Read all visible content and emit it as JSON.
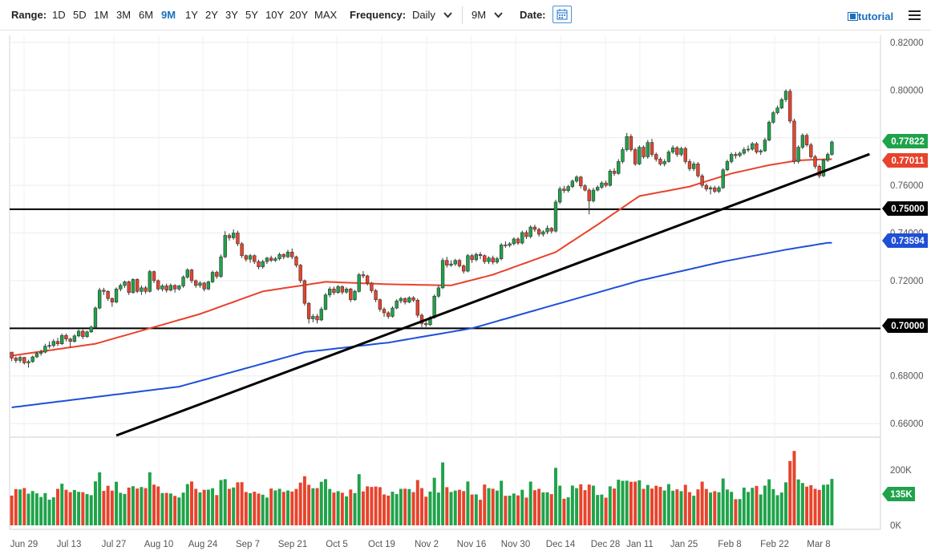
{
  "toolbar": {
    "range_label": "Range:",
    "ranges": [
      "1D",
      "5D",
      "1M",
      "3M",
      "6M",
      "9M",
      "1Y",
      "2Y",
      "3Y",
      "5Y",
      "10Y",
      "20Y",
      "MAX"
    ],
    "active_range": "9M",
    "frequency_label": "Frequency:",
    "frequency_value": "Daily",
    "period_value": "9M",
    "date_label": "Date:",
    "tutorial_label": "tutorial"
  },
  "chart_data": {
    "type": "candlestick",
    "price_axis": {
      "ylim": [
        0.655,
        0.823
      ],
      "ticks": [
        "0.82000",
        "0.80000",
        "0.78000",
        "0.76000",
        "0.74000",
        "0.72000",
        "0.70000",
        "0.68000",
        "0.66000"
      ]
    },
    "x_ticks": [
      "Jun 29",
      "Jul 13",
      "Jul 27",
      "Aug 10",
      "Aug 24",
      "Sep 7",
      "Sep 21",
      "Oct 5",
      "Oct 19",
      "Nov 2",
      "Nov 16",
      "Nov 30",
      "Dec 14",
      "Dec 28",
      "Jan 11",
      "Jan 25",
      "Feb 8",
      "Feb 22",
      "Mar 8"
    ],
    "price_markers": [
      {
        "label": "0.77822",
        "color": "#1fa34a"
      },
      {
        "label": "0.77011",
        "color": "#e8432c"
      },
      {
        "label": "0.75000",
        "color": "#000000"
      },
      {
        "label": "0.73594",
        "color": "#1e4fd8"
      },
      {
        "label": "0.70000",
        "color": "#000000"
      }
    ],
    "horizontal_lines": [
      0.75,
      0.7
    ],
    "moving_average_fast_anchors": [
      [
        0,
        0.6885
      ],
      [
        20,
        0.6935
      ],
      [
        45,
        0.706
      ],
      [
        60,
        0.7155
      ],
      [
        75,
        0.7195
      ],
      [
        90,
        0.7185
      ],
      [
        105,
        0.718
      ],
      [
        115,
        0.7225
      ],
      [
        130,
        0.732
      ],
      [
        140,
        0.7435
      ],
      [
        150,
        0.7555
      ],
      [
        162,
        0.7595
      ],
      [
        172,
        0.765
      ],
      [
        181,
        0.7685
      ],
      [
        188,
        0.7705
      ],
      [
        195,
        0.771
      ]
    ],
    "moving_average_slow_anchors": [
      [
        0,
        0.6668
      ],
      [
        40,
        0.6755
      ],
      [
        70,
        0.69
      ],
      [
        90,
        0.694
      ],
      [
        110,
        0.7
      ],
      [
        130,
        0.71
      ],
      [
        150,
        0.72
      ],
      [
        170,
        0.728
      ],
      [
        185,
        0.733
      ],
      [
        195,
        0.7359
      ]
    ],
    "trendline": {
      "from": [
        25,
        0.655
      ],
      "to": [
        205,
        0.7731
      ]
    },
    "volume_axis": {
      "ymax": 290,
      "ticks": [
        "200K",
        "0K"
      ],
      "last_label": "135K"
    },
    "candles_ohlc": [
      [
        0.69,
        0.6875,
        0.69,
        0.6862
      ],
      [
        0.6875,
        0.6865,
        0.6882,
        0.6855
      ],
      [
        0.6865,
        0.6878,
        0.6885,
        0.6855
      ],
      [
        0.6878,
        0.6855,
        0.688,
        0.6848
      ],
      [
        0.6855,
        0.686,
        0.6868,
        0.6835
      ],
      [
        0.686,
        0.688,
        0.6885,
        0.6855
      ],
      [
        0.688,
        0.6895,
        0.69,
        0.6875
      ],
      [
        0.6895,
        0.69,
        0.691,
        0.6885
      ],
      [
        0.69,
        0.6925,
        0.6935,
        0.6895
      ],
      [
        0.6925,
        0.6928,
        0.6945,
        0.6915
      ],
      [
        0.6928,
        0.6945,
        0.6955,
        0.692
      ],
      [
        0.6945,
        0.6935,
        0.696,
        0.6925
      ],
      [
        0.6935,
        0.697,
        0.6978,
        0.693
      ],
      [
        0.697,
        0.6955,
        0.6978,
        0.6945
      ],
      [
        0.6955,
        0.6945,
        0.696,
        0.692
      ],
      [
        0.6945,
        0.6968,
        0.6975,
        0.694
      ],
      [
        0.6968,
        0.6988,
        0.6995,
        0.6962
      ],
      [
        0.6988,
        0.6965,
        0.6995,
        0.6955
      ],
      [
        0.6965,
        0.6985,
        0.699,
        0.696
      ],
      [
        0.6985,
        0.7005,
        0.7012,
        0.698
      ],
      [
        0.7005,
        0.7085,
        0.7092,
        0.7
      ],
      [
        0.7085,
        0.716,
        0.717,
        0.708
      ],
      [
        0.716,
        0.7155,
        0.717,
        0.714
      ],
      [
        0.7155,
        0.7125,
        0.716,
        0.7115
      ],
      [
        0.7125,
        0.711,
        0.713,
        0.709
      ],
      [
        0.711,
        0.7165,
        0.7172,
        0.7105
      ],
      [
        0.7165,
        0.718,
        0.7188,
        0.7155
      ],
      [
        0.718,
        0.7195,
        0.72,
        0.717
      ],
      [
        0.7195,
        0.715,
        0.72,
        0.714
      ],
      [
        0.715,
        0.7205,
        0.721,
        0.7145
      ],
      [
        0.7205,
        0.7155,
        0.721,
        0.7148
      ],
      [
        0.7155,
        0.717,
        0.718,
        0.714
      ],
      [
        0.717,
        0.7155,
        0.7178,
        0.7145
      ],
      [
        0.7155,
        0.7238,
        0.7245,
        0.715
      ],
      [
        0.7238,
        0.72,
        0.7242,
        0.719
      ],
      [
        0.72,
        0.7165,
        0.7205,
        0.7158
      ],
      [
        0.7165,
        0.7178,
        0.7185,
        0.7155
      ],
      [
        0.7178,
        0.716,
        0.7188,
        0.715
      ],
      [
        0.716,
        0.718,
        0.7188,
        0.7155
      ],
      [
        0.718,
        0.7165,
        0.7185,
        0.715
      ],
      [
        0.7165,
        0.7178,
        0.7182,
        0.7158
      ],
      [
        0.7178,
        0.7215,
        0.7222,
        0.717
      ],
      [
        0.7215,
        0.7245,
        0.7252,
        0.7208
      ],
      [
        0.7245,
        0.72,
        0.725,
        0.719
      ],
      [
        0.72,
        0.718,
        0.7205,
        0.717
      ],
      [
        0.718,
        0.719,
        0.7198,
        0.717
      ],
      [
        0.719,
        0.7165,
        0.7195,
        0.7155
      ],
      [
        0.7165,
        0.7195,
        0.72,
        0.716
      ],
      [
        0.7195,
        0.7235,
        0.7242,
        0.719
      ],
      [
        0.7235,
        0.7218,
        0.7242,
        0.7208
      ],
      [
        0.7218,
        0.73,
        0.731,
        0.7212
      ],
      [
        0.73,
        0.739,
        0.7408,
        0.7295
      ],
      [
        0.739,
        0.738,
        0.7398,
        0.7368
      ],
      [
        0.738,
        0.74,
        0.7415,
        0.7372
      ],
      [
        0.74,
        0.7355,
        0.741,
        0.7345
      ],
      [
        0.7355,
        0.7305,
        0.7362,
        0.7295
      ],
      [
        0.7305,
        0.729,
        0.731,
        0.728
      ],
      [
        0.729,
        0.7305,
        0.7312,
        0.7275
      ],
      [
        0.7305,
        0.728,
        0.731,
        0.727
      ],
      [
        0.728,
        0.7258,
        0.7288,
        0.7248
      ],
      [
        0.7258,
        0.728,
        0.7288,
        0.725
      ],
      [
        0.728,
        0.7295,
        0.73,
        0.727
      ],
      [
        0.7295,
        0.7285,
        0.7305,
        0.7278
      ],
      [
        0.7285,
        0.7292,
        0.73,
        0.7278
      ],
      [
        0.7292,
        0.731,
        0.7318,
        0.7285
      ],
      [
        0.731,
        0.73,
        0.7315,
        0.729
      ],
      [
        0.73,
        0.732,
        0.733,
        0.7295
      ],
      [
        0.732,
        0.73,
        0.7335,
        0.729
      ],
      [
        0.73,
        0.7265,
        0.7305,
        0.7255
      ],
      [
        0.7265,
        0.72,
        0.727,
        0.719
      ],
      [
        0.72,
        0.7105,
        0.7205,
        0.7095
      ],
      [
        0.7105,
        0.704,
        0.711,
        0.702
      ],
      [
        0.704,
        0.705,
        0.706,
        0.7025
      ],
      [
        0.705,
        0.7035,
        0.706,
        0.702
      ],
      [
        0.7035,
        0.708,
        0.709,
        0.703
      ],
      [
        0.708,
        0.714,
        0.7148,
        0.7075
      ],
      [
        0.714,
        0.7165,
        0.7175,
        0.713
      ],
      [
        0.7165,
        0.715,
        0.7175,
        0.714
      ],
      [
        0.715,
        0.7175,
        0.7182,
        0.7145
      ],
      [
        0.7175,
        0.7152,
        0.718,
        0.7142
      ],
      [
        0.7152,
        0.7165,
        0.7172,
        0.7145
      ],
      [
        0.7165,
        0.712,
        0.717,
        0.711
      ],
      [
        0.712,
        0.7155,
        0.7162,
        0.7115
      ],
      [
        0.7155,
        0.7225,
        0.7232,
        0.715
      ],
      [
        0.7225,
        0.722,
        0.724,
        0.721
      ],
      [
        0.722,
        0.719,
        0.7225,
        0.718
      ],
      [
        0.719,
        0.7158,
        0.7195,
        0.7148
      ],
      [
        0.7158,
        0.712,
        0.7165,
        0.711
      ],
      [
        0.712,
        0.708,
        0.7125,
        0.707
      ],
      [
        0.708,
        0.7065,
        0.7088,
        0.7048
      ],
      [
        0.7065,
        0.705,
        0.7072,
        0.704
      ],
      [
        0.705,
        0.7085,
        0.7092,
        0.7045
      ],
      [
        0.7085,
        0.7115,
        0.7122,
        0.708
      ],
      [
        0.7115,
        0.7125,
        0.7132,
        0.7105
      ],
      [
        0.7125,
        0.711,
        0.713,
        0.71
      ],
      [
        0.711,
        0.7128,
        0.7135,
        0.7105
      ],
      [
        0.7128,
        0.7118,
        0.7135,
        0.711
      ],
      [
        0.7118,
        0.7055,
        0.7125,
        0.7045
      ],
      [
        0.7055,
        0.702,
        0.7062,
        0.7005
      ],
      [
        0.702,
        0.7015,
        0.7035,
        0.7005
      ],
      [
        0.7015,
        0.7045,
        0.7052,
        0.701
      ],
      [
        0.7045,
        0.7135,
        0.7142,
        0.704
      ],
      [
        0.7135,
        0.717,
        0.718,
        0.7128
      ],
      [
        0.717,
        0.7285,
        0.7295,
        0.7165
      ],
      [
        0.7285,
        0.7265,
        0.73,
        0.7255
      ],
      [
        0.7265,
        0.727,
        0.7285,
        0.7258
      ],
      [
        0.727,
        0.7285,
        0.7292,
        0.7262
      ],
      [
        0.7285,
        0.7262,
        0.7292,
        0.7255
      ],
      [
        0.7262,
        0.724,
        0.7268,
        0.723
      ],
      [
        0.724,
        0.7305,
        0.7312,
        0.7235
      ],
      [
        0.7305,
        0.7288,
        0.7312,
        0.7275
      ],
      [
        0.7288,
        0.731,
        0.7318,
        0.728
      ],
      [
        0.731,
        0.7305,
        0.732,
        0.729
      ],
      [
        0.7305,
        0.728,
        0.731,
        0.727
      ],
      [
        0.728,
        0.7295,
        0.7302,
        0.727
      ],
      [
        0.7295,
        0.7278,
        0.7305,
        0.7268
      ],
      [
        0.7278,
        0.7292,
        0.73,
        0.727
      ],
      [
        0.7292,
        0.735,
        0.7358,
        0.7285
      ],
      [
        0.735,
        0.7348,
        0.7365,
        0.7338
      ],
      [
        0.7348,
        0.7355,
        0.7362,
        0.734
      ],
      [
        0.7355,
        0.7375,
        0.7382,
        0.7348
      ],
      [
        0.7375,
        0.7358,
        0.7382,
        0.735
      ],
      [
        0.7358,
        0.7402,
        0.741,
        0.7352
      ],
      [
        0.7402,
        0.7385,
        0.7412,
        0.7375
      ],
      [
        0.7385,
        0.7425,
        0.7432,
        0.7378
      ],
      [
        0.7425,
        0.7415,
        0.7435,
        0.7405
      ],
      [
        0.7415,
        0.7395,
        0.7422,
        0.7385
      ],
      [
        0.7395,
        0.7405,
        0.7412,
        0.7385
      ],
      [
        0.7405,
        0.742,
        0.7432,
        0.7395
      ],
      [
        0.742,
        0.7408,
        0.7425,
        0.7398
      ],
      [
        0.7408,
        0.753,
        0.754,
        0.7402
      ],
      [
        0.753,
        0.7585,
        0.7595,
        0.7522
      ],
      [
        0.7585,
        0.7578,
        0.7598,
        0.7568
      ],
      [
        0.7578,
        0.7595,
        0.7602,
        0.757
      ],
      [
        0.7595,
        0.7618,
        0.7625,
        0.7588
      ],
      [
        0.7618,
        0.7635,
        0.7642,
        0.761
      ],
      [
        0.7635,
        0.7598,
        0.764,
        0.7588
      ],
      [
        0.7598,
        0.758,
        0.7605,
        0.7575
      ],
      [
        0.758,
        0.7535,
        0.7588,
        0.7478
      ],
      [
        0.7535,
        0.758,
        0.759,
        0.7528
      ],
      [
        0.758,
        0.7592,
        0.76,
        0.7575
      ],
      [
        0.7592,
        0.761,
        0.7618,
        0.7585
      ],
      [
        0.761,
        0.76,
        0.762,
        0.7592
      ],
      [
        0.76,
        0.766,
        0.7668,
        0.7595
      ],
      [
        0.766,
        0.765,
        0.7672,
        0.764
      ],
      [
        0.765,
        0.77,
        0.771,
        0.7645
      ],
      [
        0.77,
        0.775,
        0.776,
        0.7692
      ],
      [
        0.775,
        0.7805,
        0.782,
        0.7742
      ],
      [
        0.7805,
        0.775,
        0.7815,
        0.7742
      ],
      [
        0.775,
        0.769,
        0.7758,
        0.7682
      ],
      [
        0.769,
        0.776,
        0.7768,
        0.7685
      ],
      [
        0.776,
        0.772,
        0.7768,
        0.7712
      ],
      [
        0.772,
        0.778,
        0.779,
        0.7712
      ],
      [
        0.778,
        0.773,
        0.7795,
        0.772
      ],
      [
        0.773,
        0.771,
        0.7738,
        0.77
      ],
      [
        0.771,
        0.769,
        0.7718,
        0.7682
      ],
      [
        0.769,
        0.77,
        0.771,
        0.768
      ],
      [
        0.77,
        0.774,
        0.7748,
        0.7695
      ],
      [
        0.774,
        0.7758,
        0.7768,
        0.7732
      ],
      [
        0.7758,
        0.773,
        0.7765,
        0.772
      ],
      [
        0.773,
        0.7755,
        0.7762,
        0.7722
      ],
      [
        0.7755,
        0.77,
        0.7762,
        0.769
      ],
      [
        0.77,
        0.767,
        0.771,
        0.766
      ],
      [
        0.767,
        0.769,
        0.77,
        0.766
      ],
      [
        0.769,
        0.764,
        0.7698,
        0.7632
      ],
      [
        0.764,
        0.76,
        0.7648,
        0.759
      ],
      [
        0.76,
        0.7585,
        0.7608,
        0.7575
      ],
      [
        0.7585,
        0.759,
        0.7598,
        0.7562
      ],
      [
        0.759,
        0.7575,
        0.7598,
        0.7568
      ],
      [
        0.7575,
        0.759,
        0.7598,
        0.7568
      ],
      [
        0.759,
        0.7665,
        0.7672,
        0.7585
      ],
      [
        0.7665,
        0.77,
        0.7708,
        0.766
      ],
      [
        0.77,
        0.773,
        0.7738,
        0.7692
      ],
      [
        0.773,
        0.7725,
        0.774,
        0.7712
      ],
      [
        0.7725,
        0.7735,
        0.7742,
        0.7718
      ],
      [
        0.7735,
        0.775,
        0.776,
        0.7728
      ],
      [
        0.775,
        0.7752,
        0.7768,
        0.774
      ],
      [
        0.7752,
        0.7775,
        0.7782,
        0.7745
      ],
      [
        0.7775,
        0.774,
        0.7782,
        0.7732
      ],
      [
        0.774,
        0.7745,
        0.7752,
        0.7728
      ],
      [
        0.7745,
        0.779,
        0.78,
        0.774
      ],
      [
        0.779,
        0.7865,
        0.7872,
        0.7785
      ],
      [
        0.7865,
        0.7905,
        0.7912,
        0.7858
      ],
      [
        0.7905,
        0.7925,
        0.7935,
        0.7898
      ],
      [
        0.7925,
        0.796,
        0.7968,
        0.792
      ],
      [
        0.796,
        0.7995,
        0.8003,
        0.795
      ],
      [
        0.7995,
        0.787,
        0.8005,
        0.786
      ],
      [
        0.787,
        0.77,
        0.788,
        0.769
      ],
      [
        0.77,
        0.776,
        0.7768,
        0.7692
      ],
      [
        0.776,
        0.781,
        0.7818,
        0.7752
      ],
      [
        0.781,
        0.777,
        0.7818,
        0.7762
      ],
      [
        0.777,
        0.772,
        0.7778,
        0.7712
      ],
      [
        0.772,
        0.768,
        0.7728,
        0.767
      ],
      [
        0.768,
        0.764,
        0.7688,
        0.763
      ],
      [
        0.764,
        0.7705,
        0.7712,
        0.7635
      ],
      [
        0.7705,
        0.773,
        0.7738,
        0.7698
      ],
      [
        0.773,
        0.7782,
        0.7788,
        0.7725
      ]
    ]
  }
}
